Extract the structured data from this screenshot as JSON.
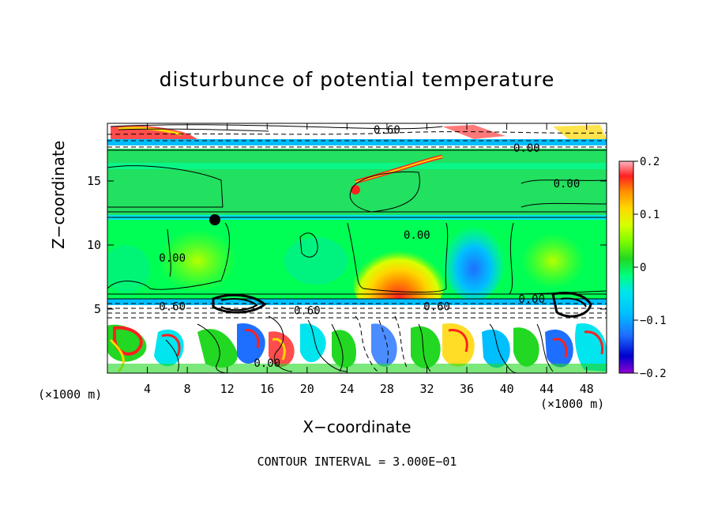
{
  "chart_data": {
    "type": "heatmap",
    "title": "disturbunce of potential temperature",
    "xlabel": "X−coordinate",
    "ylabel": "Z−coordinate",
    "x_unit": "(×1000 m)",
    "z_unit": "(×1000 m)",
    "xlim": [
      0,
      50
    ],
    "ylim": [
      0,
      19.5
    ],
    "x_ticks": [
      4,
      8,
      12,
      16,
      20,
      24,
      28,
      32,
      36,
      40,
      44,
      48
    ],
    "y_ticks": [
      5,
      10,
      15
    ],
    "colorbar": {
      "range": [
        -0.2,
        0.2
      ],
      "ticks": [
        {
          "value": 0.2,
          "label": "0.2"
        },
        {
          "value": 0.1,
          "label": "0.1"
        },
        {
          "value": 0,
          "label": "0"
        },
        {
          "value": -0.1,
          "label": "−0.1"
        },
        {
          "value": -0.2,
          "label": "−0.2"
        }
      ],
      "colors": [
        "#9400d3",
        "#0000cd",
        "#1e6fff",
        "#00bfff",
        "#00e5ee",
        "#00ff7f",
        "#22d822",
        "#7cfc00",
        "#d8ff00",
        "#ffd700",
        "#ff8c00",
        "#ff2020",
        "#ffb6c1"
      ]
    },
    "contour_labels": [
      {
        "x": 28,
        "z": 19.0,
        "text": "0.60"
      },
      {
        "x": 42,
        "z": 17.6,
        "text": "0.00"
      },
      {
        "x": 46,
        "z": 14.8,
        "text": "0.00"
      },
      {
        "x": 6.5,
        "z": 9.0,
        "text": "0.00"
      },
      {
        "x": 31,
        "z": 10.8,
        "text": "0.00"
      },
      {
        "x": 42.5,
        "z": 5.8,
        "text": "0.00"
      },
      {
        "x": 6.5,
        "z": 5.2,
        "text": "0.60"
      },
      {
        "x": 20,
        "z": 4.9,
        "text": "0.60"
      },
      {
        "x": 33,
        "z": 5.2,
        "text": "0.60"
      },
      {
        "x": 16,
        "z": 0.8,
        "text": "0.00"
      }
    ],
    "contour_interval": "CONTOUR INTERVAL = 3.000E−01"
  }
}
